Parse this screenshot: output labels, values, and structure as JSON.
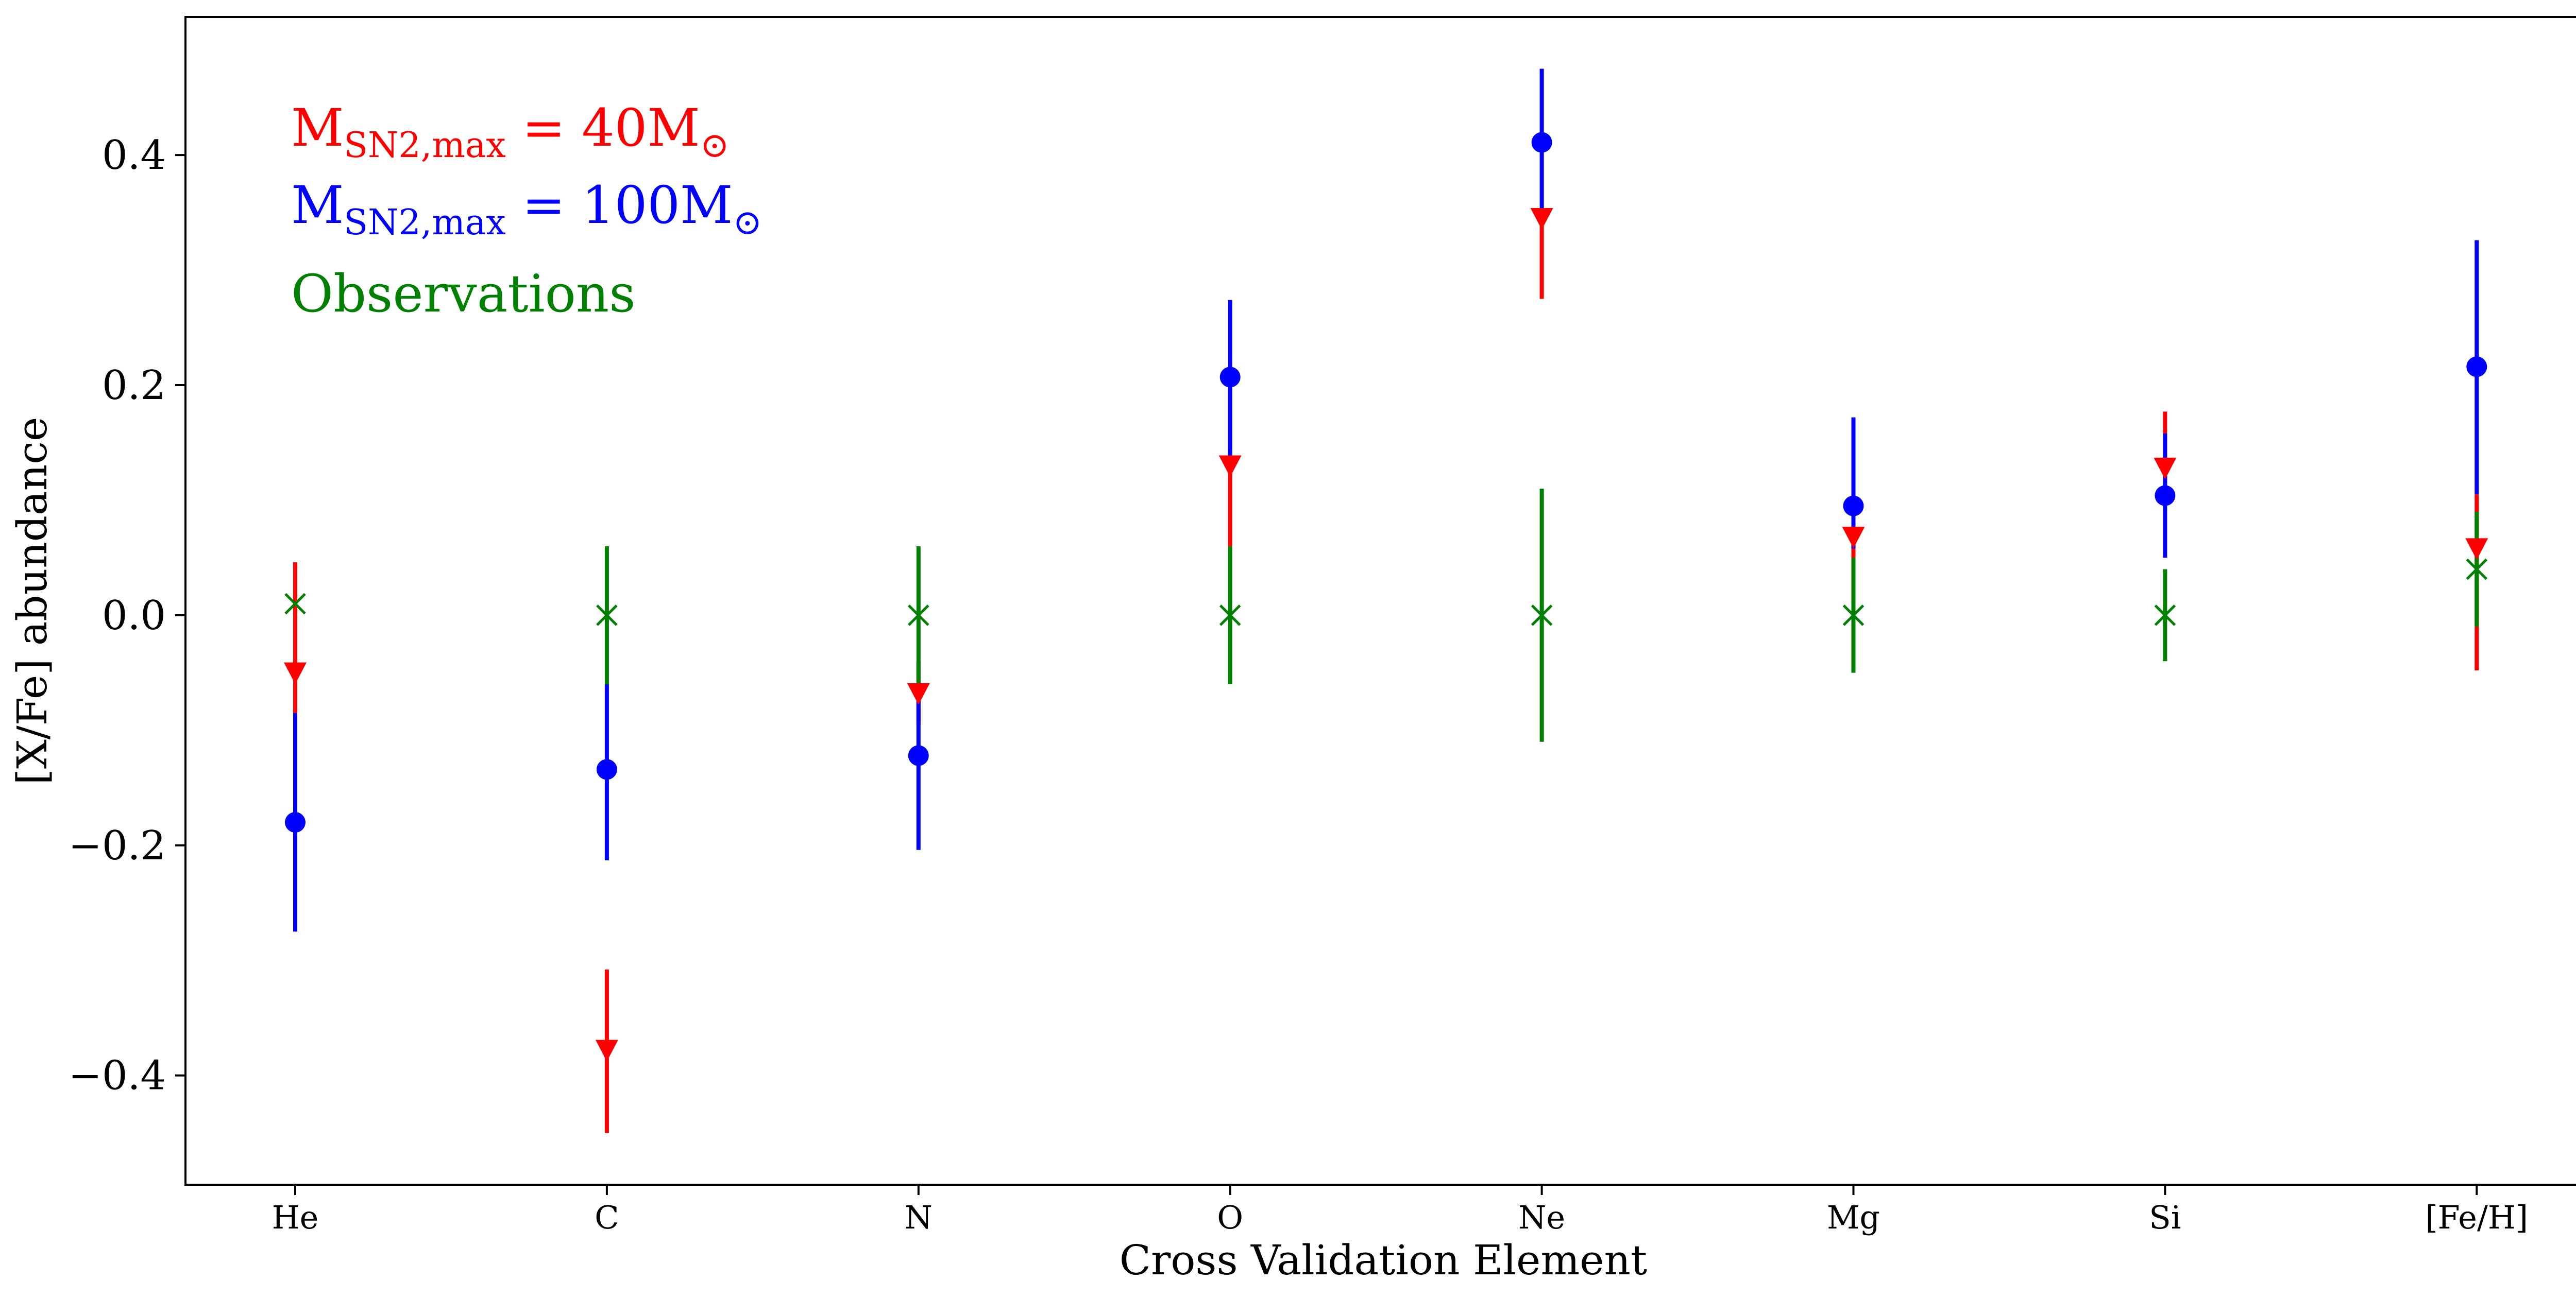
{
  "chart_data": {
    "type": "scatter",
    "title": "",
    "xlabel": "Cross Validation Element",
    "ylabel": "[X/Fe] abundance",
    "categories": [
      "He",
      "C",
      "N",
      "O",
      "Ne",
      "Mg",
      "Si",
      "[Fe/H]"
    ],
    "ylim": [
      -0.495,
      0.52
    ],
    "yticks": [
      -0.4,
      -0.2,
      0.0,
      0.2,
      0.4
    ],
    "ytick_labels": [
      "−0.4",
      "−0.2",
      "0.0",
      "0.2",
      "0.4"
    ],
    "grid": false,
    "legend": {
      "placement": "top-left",
      "entries": [
        {
          "base": "M",
          "sub": "SN2,max",
          "rest": " = 40M",
          "sym": "⊙",
          "color": "#ff0000"
        },
        {
          "base": "M",
          "sub": "SN2,max",
          "rest": " = 100M",
          "sym": "⊙",
          "color": "#0000ff"
        },
        {
          "text": "Observations",
          "color": "#008000"
        }
      ]
    },
    "series": [
      {
        "marker": "triangle-down",
        "color": "#ff0000",
        "values": [
          -0.05,
          -0.378,
          -0.068,
          0.13,
          0.345,
          0.068,
          0.128,
          0.058
        ],
        "err_low": [
          -0.085,
          -0.45,
          -0.095,
          0.06,
          0.275,
          0.04,
          0.1,
          -0.048
        ],
        "err_high": [
          0.046,
          -0.308,
          -0.04,
          0.2,
          0.345,
          0.1,
          0.177,
          0.105
        ]
      },
      {
        "marker": "circle",
        "color": "#0000ff",
        "values": [
          -0.18,
          -0.134,
          -0.122,
          0.207,
          0.411,
          0.095,
          0.104,
          0.216
        ],
        "err_low": [
          -0.275,
          -0.213,
          -0.204,
          0.13,
          0.345,
          0.058,
          0.05,
          0.105
        ],
        "err_high": [
          -0.085,
          -0.06,
          -0.07,
          0.274,
          0.475,
          0.172,
          0.158,
          0.326
        ]
      },
      {
        "marker": "x",
        "color": "#008000",
        "values": [
          0.01,
          0.0,
          0.0,
          0.0,
          0.0,
          0.0,
          0.0,
          0.04
        ],
        "err_low": [
          0.01,
          -0.06,
          -0.06,
          -0.06,
          -0.11,
          -0.05,
          -0.04,
          -0.01
        ],
        "err_high": [
          0.01,
          0.06,
          0.06,
          0.06,
          0.11,
          0.05,
          0.04,
          0.09
        ]
      }
    ]
  }
}
